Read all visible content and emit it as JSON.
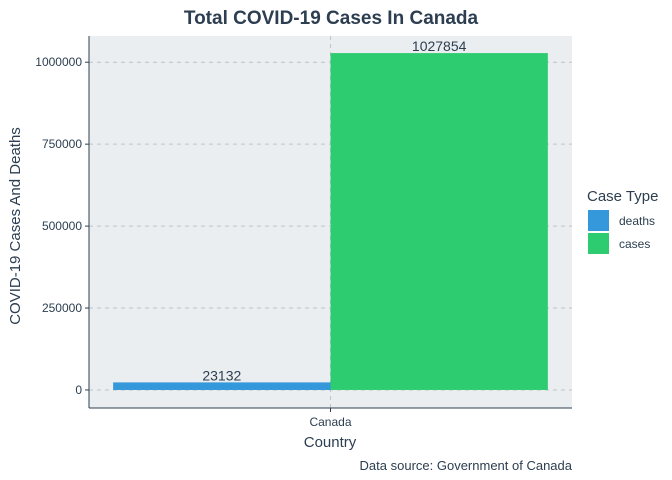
{
  "chart_data": {
    "type": "bar",
    "title": "Total COVID-19 Cases In Canada",
    "xlabel": "Country",
    "ylabel": "COVID-19 Cases And Deaths",
    "caption": "Data source: Government of Canada",
    "categories": [
      "Canada"
    ],
    "series": [
      {
        "name": "deaths",
        "values": [
          23132
        ],
        "color": "#3498db"
      },
      {
        "name": "cases",
        "values": [
          1027854
        ],
        "color": "#2ecc71"
      }
    ],
    "ylim": [
      -55000,
      1080000
    ],
    "yticks": [
      0,
      250000,
      500000,
      750000,
      1000000
    ],
    "ytick_labels": [
      "0",
      "250000",
      "500000",
      "750000",
      "1000000"
    ],
    "grid": true,
    "legend": {
      "title": "Case Type",
      "position": "right"
    },
    "colors": {
      "panel": "#ebeef0",
      "text": "#2c3e50",
      "grid": "#c0c4c8"
    }
  }
}
